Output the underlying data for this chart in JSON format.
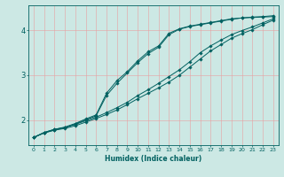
{
  "title": "",
  "xlabel": "Humidex (Indice chaleur)",
  "ylabel": "",
  "bg_color": "#cce8e4",
  "grid_color": "#e8a0a0",
  "line_color": "#006060",
  "xlim": [
    -0.5,
    23.5
  ],
  "ylim": [
    1.45,
    4.55
  ],
  "yticks": [
    2,
    3,
    4
  ],
  "xticks": [
    0,
    1,
    2,
    3,
    4,
    5,
    6,
    7,
    8,
    9,
    10,
    11,
    12,
    13,
    14,
    15,
    16,
    17,
    18,
    19,
    20,
    21,
    22,
    23
  ],
  "series": [
    [
      1.62,
      1.72,
      1.78,
      1.82,
      1.88,
      1.96,
      2.04,
      2.13,
      2.23,
      2.35,
      2.48,
      2.6,
      2.72,
      2.85,
      3.0,
      3.18,
      3.36,
      3.54,
      3.68,
      3.82,
      3.92,
      4.01,
      4.12,
      4.22
    ],
    [
      1.62,
      1.72,
      1.79,
      1.84,
      1.91,
      1.99,
      2.07,
      2.17,
      2.28,
      2.4,
      2.55,
      2.68,
      2.82,
      2.97,
      3.12,
      3.3,
      3.5,
      3.65,
      3.78,
      3.9,
      3.99,
      4.07,
      4.16,
      4.25
    ],
    [
      1.62,
      1.73,
      1.8,
      1.84,
      1.92,
      2.01,
      2.1,
      2.55,
      2.82,
      3.05,
      3.28,
      3.48,
      3.62,
      3.9,
      4.02,
      4.08,
      4.12,
      4.16,
      4.2,
      4.24,
      4.27,
      4.28,
      4.29,
      4.3
    ],
    [
      1.62,
      1.73,
      1.8,
      1.85,
      1.93,
      2.03,
      2.12,
      2.6,
      2.88,
      3.08,
      3.32,
      3.52,
      3.65,
      3.93,
      4.03,
      4.09,
      4.13,
      4.17,
      4.21,
      4.25,
      4.27,
      4.29,
      4.3,
      4.32
    ]
  ],
  "marker": "D",
  "markersize": 1.8,
  "linewidth": 0.7
}
